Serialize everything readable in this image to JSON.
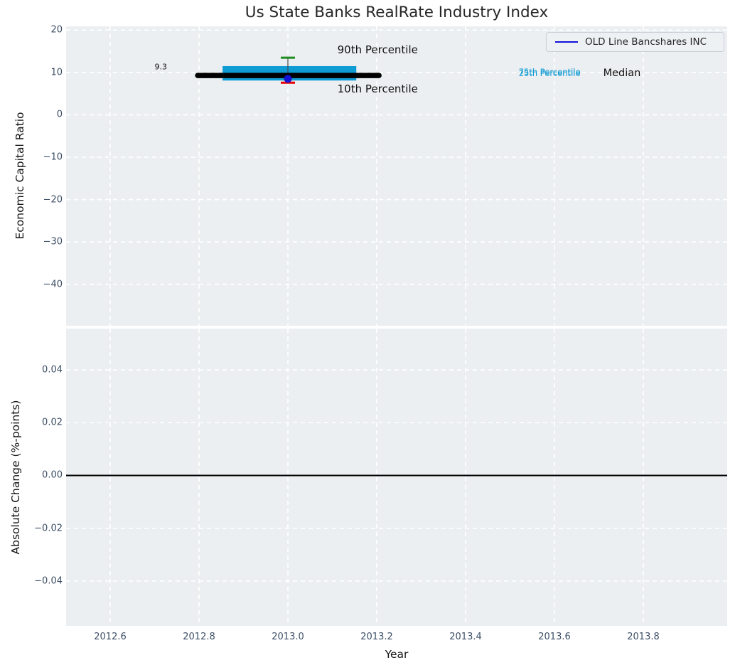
{
  "title": "Us State Banks RealRate Industry Index",
  "legend": {
    "label": "OLD Line Bancshares INC"
  },
  "colors": {
    "figure_bg": "#ffffff",
    "axes_bg": "#eceff1",
    "grid": "#ffffff",
    "tick_label": "#3d4f66",
    "text": "#262626",
    "median_line": "#000000",
    "iqr_band": "#0f9bd3",
    "p90_cap": "#1e8b1e",
    "p10_cap": "#e60000",
    "whisker": "#4a4a4a",
    "company_dot": "#1212d6",
    "zero_line": "#000000"
  },
  "x_axis": {
    "label": "Year",
    "lim": [
      2012.5008,
      2013.9888
    ],
    "ticks": [
      {
        "value": 2012.6,
        "label": "2012.6"
      },
      {
        "value": 2012.8,
        "label": "2012.8"
      },
      {
        "value": 2013.0,
        "label": "2013.0"
      },
      {
        "value": 2013.2,
        "label": "2013.2"
      },
      {
        "value": 2013.4,
        "label": "2013.4"
      },
      {
        "value": 2013.6,
        "label": "2013.6"
      },
      {
        "value": 2013.8,
        "label": "2013.8"
      }
    ]
  },
  "chart_data": [
    {
      "panel": "top",
      "type": "percentile_band",
      "ylabel": "Economic Capital Ratio",
      "ylim": [
        -49.8,
        20.9
      ],
      "yticks": [
        {
          "value": 20,
          "label": "20"
        },
        {
          "value": 10,
          "label": "10"
        },
        {
          "value": 0,
          "label": "0"
        },
        {
          "value": -10,
          "label": "−10"
        },
        {
          "value": -20,
          "label": "−20"
        },
        {
          "value": -30,
          "label": "−30"
        },
        {
          "value": -40,
          "label": "−40"
        }
      ],
      "series": {
        "year": 2013.0,
        "median": 9.3,
        "median_span": [
          2012.797,
          2013.205
        ],
        "p75": 11.5,
        "p25": 8.1,
        "iqr_span": [
          2012.853,
          2013.154
        ],
        "p90": 13.5,
        "p10": 7.6,
        "company": {
          "name": "OLD Line Bancshares INC",
          "value": 8.5
        }
      },
      "annotations": [
        {
          "text": "9.3",
          "x": 2012.714,
          "y": 11.4,
          "size": 11,
          "color": "#111111"
        },
        {
          "text": "90th Percentile",
          "x": 2013.202,
          "y": 15.3,
          "size": 15,
          "color": "#111111"
        },
        {
          "text": "10th Percentile",
          "x": 2013.202,
          "y": 6.2,
          "size": 15,
          "color": "#111111"
        },
        {
          "text": "75th Percentile",
          "x": 2013.589,
          "y": 10.15,
          "size": 11.5,
          "color": "#0f9bd3"
        },
        {
          "text": "25th Percentile",
          "x": 2013.589,
          "y": 9.8,
          "size": 11.5,
          "color": "#0f9bd3"
        },
        {
          "text": "Median",
          "x": 2013.752,
          "y": 9.9,
          "size": 14.5,
          "color": "#111111"
        }
      ]
    },
    {
      "panel": "bottom",
      "type": "line",
      "ylabel": "Absolute Change (%-points)",
      "ylim": [
        -0.05697,
        0.05562
      ],
      "yticks": [
        {
          "value": 0.04,
          "label": "0.04"
        },
        {
          "value": 0.02,
          "label": "0.02"
        },
        {
          "value": 0.0,
          "label": "0.00"
        },
        {
          "value": -0.02,
          "label": "−0.02"
        },
        {
          "value": -0.04,
          "label": "−0.04"
        }
      ],
      "zero_line": 0.0
    }
  ]
}
